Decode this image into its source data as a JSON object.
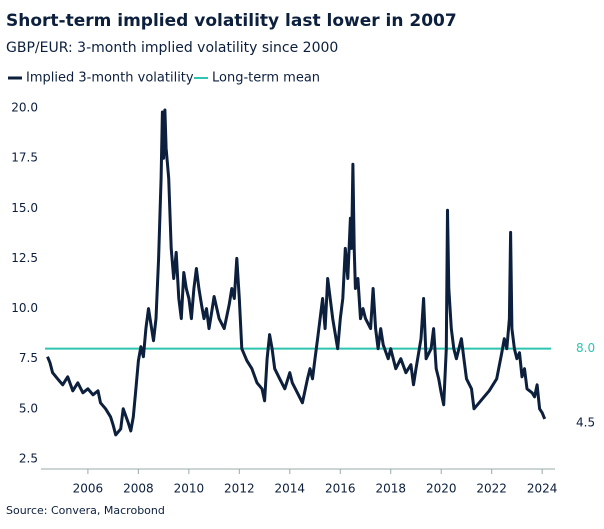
{
  "chart_data": {
    "type": "line",
    "title": "Short-term implied volatility last lower in 2007",
    "subtitle": "GBP/EUR: 3-month implied volatility since 2000",
    "source": "Source: Convera, Macrobond",
    "x": [
      2004.4,
      2004.5,
      2004.6,
      2004.8,
      2005.0,
      2005.2,
      2005.4,
      2005.6,
      2005.8,
      2006.0,
      2006.2,
      2006.4,
      2006.5,
      2006.7,
      2006.9,
      2007.0,
      2007.1,
      2007.3,
      2007.4,
      2007.6,
      2007.7,
      2007.8,
      2007.9,
      2008.0,
      2008.1,
      2008.2,
      2008.3,
      2008.4,
      2008.5,
      2008.6,
      2008.7,
      2008.8,
      2008.9,
      2008.95,
      2009.0,
      2009.05,
      2009.1,
      2009.2,
      2009.3,
      2009.4,
      2009.5,
      2009.6,
      2009.7,
      2009.8,
      2009.9,
      2010.0,
      2010.1,
      2010.2,
      2010.3,
      2010.4,
      2010.5,
      2010.6,
      2010.7,
      2010.8,
      2010.9,
      2011.0,
      2011.2,
      2011.4,
      2011.6,
      2011.7,
      2011.8,
      2011.9,
      2012.0,
      2012.1,
      2012.3,
      2012.5,
      2012.7,
      2012.9,
      2013.0,
      2013.1,
      2013.2,
      2013.3,
      2013.4,
      2013.6,
      2013.8,
      2014.0,
      2014.1,
      2014.3,
      2014.5,
      2014.7,
      2014.8,
      2014.9,
      2015.0,
      2015.1,
      2015.3,
      2015.4,
      2015.5,
      2015.6,
      2015.7,
      2015.9,
      2016.0,
      2016.1,
      2016.2,
      2016.3,
      2016.4,
      2016.45,
      2016.5,
      2016.55,
      2016.6,
      2016.7,
      2016.8,
      2016.9,
      2017.0,
      2017.2,
      2017.3,
      2017.4,
      2017.5,
      2017.6,
      2017.7,
      2017.9,
      2018.0,
      2018.2,
      2018.4,
      2018.6,
      2018.8,
      2018.9,
      2019.0,
      2019.2,
      2019.3,
      2019.4,
      2019.6,
      2019.7,
      2019.8,
      2019.9,
      2020.0,
      2020.1,
      2020.2,
      2020.25,
      2020.3,
      2020.4,
      2020.5,
      2020.6,
      2020.8,
      2020.9,
      2021.0,
      2021.2,
      2021.3,
      2021.5,
      2021.7,
      2021.9,
      2022.0,
      2022.2,
      2022.4,
      2022.5,
      2022.6,
      2022.7,
      2022.75,
      2022.8,
      2022.9,
      2023.0,
      2023.1,
      2023.2,
      2023.3,
      2023.4,
      2023.6,
      2023.7,
      2023.8,
      2023.9,
      2024.0,
      2024.1
    ],
    "series": [
      {
        "name": "Implied 3-month volatility",
        "color": "#0c1f3d",
        "values": [
          7.6,
          7.3,
          6.8,
          6.5,
          6.2,
          6.6,
          5.9,
          6.3,
          5.8,
          6.0,
          5.7,
          5.9,
          5.3,
          5.0,
          4.6,
          4.2,
          3.7,
          4.0,
          5.0,
          4.3,
          3.9,
          4.6,
          6.0,
          7.4,
          8.1,
          7.6,
          9.0,
          10.0,
          9.2,
          8.4,
          9.5,
          12.5,
          16.5,
          19.8,
          17.5,
          19.9,
          18.0,
          16.5,
          13.0,
          11.5,
          12.8,
          10.5,
          9.5,
          11.8,
          11.0,
          10.5,
          9.5,
          11.0,
          12.0,
          11.0,
          10.2,
          9.5,
          10.0,
          9.0,
          9.8,
          10.6,
          9.5,
          9.0,
          10.2,
          11.0,
          10.5,
          12.5,
          10.5,
          8.0,
          7.4,
          7.0,
          6.3,
          6.0,
          5.4,
          7.5,
          8.7,
          8.0,
          7.0,
          6.5,
          6.0,
          6.8,
          6.3,
          5.8,
          5.3,
          6.5,
          7.0,
          6.5,
          7.5,
          8.5,
          10.5,
          9.0,
          11.5,
          10.5,
          9.5,
          8.0,
          9.5,
          10.5,
          13.0,
          11.5,
          14.5,
          13.0,
          17.2,
          13.0,
          11.0,
          11.5,
          9.5,
          10.0,
          9.5,
          9.0,
          11.0,
          9.0,
          8.0,
          9.0,
          8.2,
          7.5,
          8.0,
          7.0,
          7.5,
          6.8,
          7.2,
          6.2,
          7.0,
          8.5,
          10.5,
          7.5,
          8.0,
          9.0,
          7.0,
          6.5,
          5.8,
          5.2,
          8.0,
          14.9,
          11.0,
          9.0,
          8.0,
          7.5,
          8.5,
          7.5,
          6.5,
          6.0,
          5.0,
          5.3,
          5.6,
          5.9,
          6.1,
          6.5,
          7.8,
          8.5,
          8.0,
          9.5,
          13.8,
          9.0,
          8.0,
          7.5,
          7.8,
          6.6,
          7.0,
          6.0,
          5.8,
          5.6,
          6.2,
          5.0,
          4.8,
          4.5
        ]
      }
    ],
    "reference_line": {
      "name": "Long-term mean",
      "color": "#2ec4b0",
      "value": 8,
      "label": "8.0"
    },
    "end_label": {
      "value": 4.5,
      "label": "4.5"
    },
    "xlim": [
      2004.3,
      2024.35
    ],
    "xticks": [
      2006,
      2008,
      2010,
      2012,
      2014,
      2016,
      2018,
      2020,
      2022,
      2024
    ],
    "ylim": [
      2,
      20.6
    ],
    "yticks": [
      {
        "value": 2.5,
        "label": "2.5"
      },
      {
        "value": 5,
        "label": "5.0"
      },
      {
        "value": 7.5,
        "label": "7.5"
      },
      {
        "value": 10,
        "label": "10.0"
      },
      {
        "value": 12.5,
        "label": "12.5"
      },
      {
        "value": 15,
        "label": "15.0"
      },
      {
        "value": 17.5,
        "label": "17.5"
      },
      {
        "value": 20,
        "label": "20.0"
      }
    ],
    "grid": false
  }
}
